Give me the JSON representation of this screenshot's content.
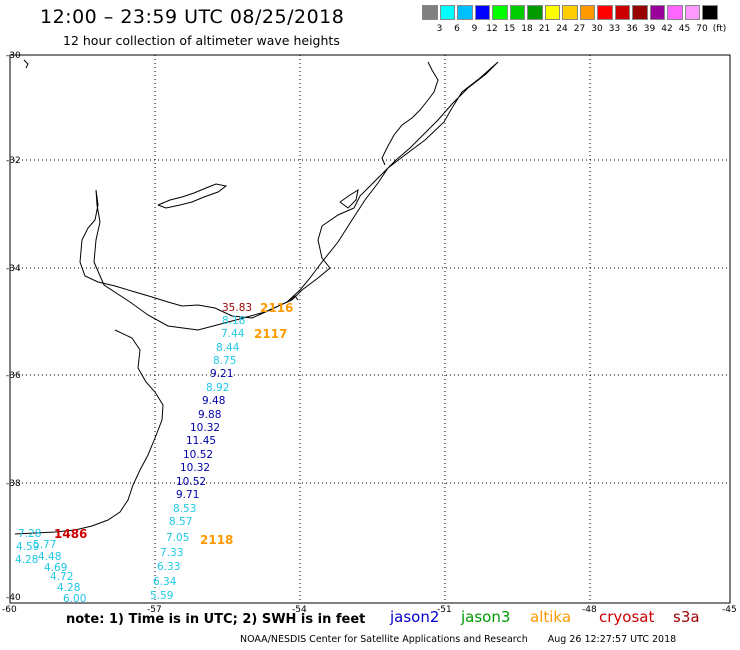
{
  "header": {
    "title": "12:00 – 23:59 UTC 08/25/2018",
    "subtitle": "12 hour collection of altimeter wave heights"
  },
  "legend": {
    "unit": "(ft)",
    "colors": [
      "#808080",
      "#00ffff",
      "#00bfff",
      "#0000ff",
      "#00ff00",
      "#00cc00",
      "#009900",
      "#ffff00",
      "#ffcc00",
      "#ff9900",
      "#ff0000",
      "#cc0000",
      "#990000",
      "#990099",
      "#ff66ff",
      "#ff99ff",
      "#000000"
    ],
    "labels": [
      "3",
      "6",
      "9",
      "12",
      "15",
      "18",
      "21",
      "24",
      "27",
      "30",
      "33",
      "36",
      "39",
      "42",
      "45",
      "70"
    ]
  },
  "axes": {
    "lat_labels": [
      "-30",
      "-32",
      "-34",
      "-36",
      "-38",
      "-40"
    ],
    "lon_labels": [
      "-60",
      "-57",
      "-54",
      "-51",
      "-48",
      "-45"
    ]
  },
  "observations": {
    "jason2_track": [
      "8.18",
      "7.44",
      "8.44",
      "8.75",
      "9.21",
      "8.92",
      "9.48",
      "9.88",
      "10.32",
      "11.45",
      "10.52",
      "10.32",
      "10.52",
      "9.71",
      "8.53",
      "8.57",
      "7.05",
      "7.33",
      "6.33",
      "6.34",
      "5.59"
    ],
    "south_track": [
      "7.28",
      "4.59",
      "5.77",
      "4.48",
      "4.28",
      "4.69",
      "4.72",
      "4.28",
      "6.00"
    ],
    "max_value": "35.83",
    "coastal_overlap": "1486",
    "pass_labels": [
      "2116",
      "2117",
      "2118"
    ]
  },
  "footer": {
    "note": "note: 1) Time is in UTC; 2) SWH is in feet",
    "satellites": [
      {
        "name": "jason2",
        "color": "#0000cc"
      },
      {
        "name": "jason3",
        "color": "#009900"
      },
      {
        "name": "altika",
        "color": "#ff9900"
      },
      {
        "name": "cryosat",
        "color": "#cc0000"
      },
      {
        "name": "s3a",
        "color": "#990000"
      }
    ],
    "credit": "NOAA/NESDIS Center for Satellite Applications and Research",
    "timestamp": "Aug 26 12:27:57 UTC 2018"
  }
}
